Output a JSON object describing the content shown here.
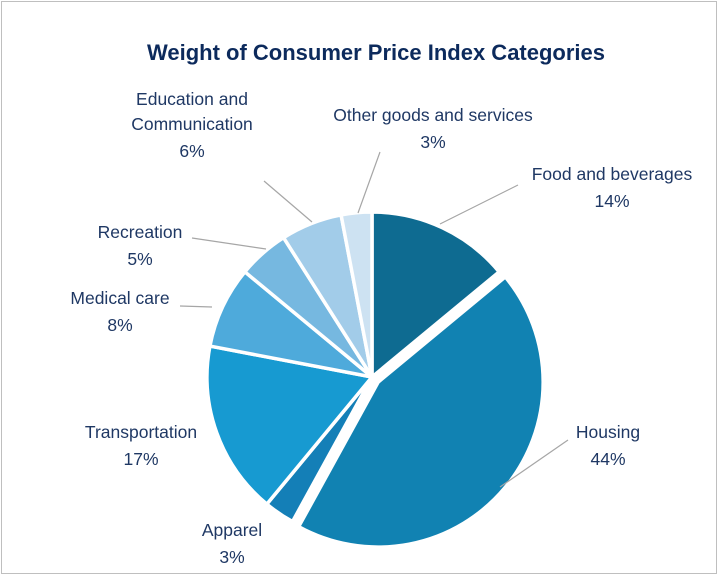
{
  "chart_data": {
    "type": "pie",
    "title": "Weight of Consumer Price Index Categories",
    "slices": [
      {
        "name": "Food and beverages",
        "value": 14,
        "label": "14%",
        "color": "#0e6b91"
      },
      {
        "name": "Housing",
        "value": 44,
        "label": "44%",
        "color": "#1182b2"
      },
      {
        "name": "Apparel",
        "value": 3,
        "label": "3%",
        "color": "#147fb7"
      },
      {
        "name": "Transportation",
        "value": 17,
        "label": "17%",
        "color": "#179ad1"
      },
      {
        "name": "Medical care",
        "value": 8,
        "label": "8%",
        "color": "#4eaadb"
      },
      {
        "name": "Recreation",
        "value": 5,
        "label": "5%",
        "color": "#76b8e0"
      },
      {
        "name": "Education and Communication",
        "value": 6,
        "label": "6%",
        "color": "#a2cce9"
      },
      {
        "name": "Other goods and services",
        "value": 3,
        "label": "3%",
        "color": "#cde2f2"
      }
    ],
    "legend": "none"
  }
}
